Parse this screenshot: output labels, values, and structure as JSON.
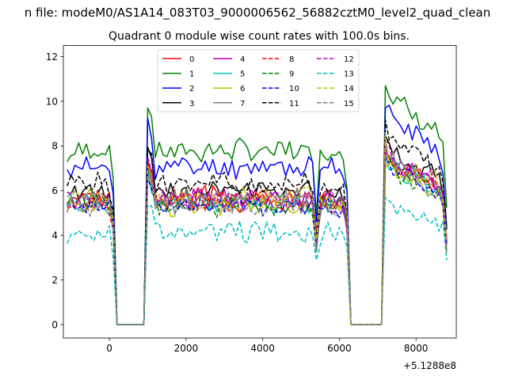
{
  "chart_data": {
    "type": "line",
    "suptitle": "n file: modeM0/AS1A14_083T03_9000006562_56882cztM0_level2_quad_clean",
    "title": "Quadrant 0 module wise count rates with 100.0s bins.",
    "xlabel": "",
    "ylabel": "",
    "x_offset_label": "+5.1288e8",
    "xlim": [
      -1200,
      9050
    ],
    "ylim": [
      -0.6,
      12.5
    ],
    "x_ticks": [
      0,
      2000,
      4000,
      6000,
      8000
    ],
    "x_tick_labels": [
      "0",
      "2000",
      "4000",
      "6000",
      "8000"
    ],
    "y_ticks": [
      0,
      2,
      4,
      6,
      8,
      10,
      12
    ],
    "y_tick_labels": [
      "0",
      "2",
      "4",
      "6",
      "8",
      "10",
      "12"
    ],
    "grid": false,
    "legend_placement": "top-center",
    "legend_columns": 4,
    "x_values_range": {
      "start": -1100,
      "end": 8800,
      "step": 100
    },
    "gaps": [
      [
        200,
        900
      ],
      [
        6300,
        7100
      ]
    ],
    "series": [
      {
        "name": "0",
        "color": "#ff0000",
        "dash": "solid",
        "level": 5.7,
        "seed": 3
      },
      {
        "name": "1",
        "color": "#008000",
        "dash": "solid",
        "level": 7.8,
        "seed": 7
      },
      {
        "name": "2",
        "color": "#0000ff",
        "dash": "solid",
        "level": 7.05,
        "seed": 11
      },
      {
        "name": "3",
        "color": "#000000",
        "dash": "solid",
        "level": 6.0,
        "seed": 13
      },
      {
        "name": "4",
        "color": "#bf00bf",
        "dash": "solid",
        "level": 5.55,
        "seed": 17
      },
      {
        "name": "5",
        "color": "#00bfbf",
        "dash": "solid",
        "level": 5.45,
        "seed": 19
      },
      {
        "name": "6",
        "color": "#bfbf00",
        "dash": "solid",
        "level": 5.3,
        "seed": 23
      },
      {
        "name": "7",
        "color": "#808080",
        "dash": "solid",
        "level": 5.6,
        "seed": 29
      },
      {
        "name": "8",
        "color": "#ff0000",
        "dash": "dashed",
        "level": 5.5,
        "seed": 31
      },
      {
        "name": "9",
        "color": "#008000",
        "dash": "dashed",
        "level": 5.35,
        "seed": 37
      },
      {
        "name": "10",
        "color": "#0000ff",
        "dash": "dashed",
        "level": 5.3,
        "seed": 41
      },
      {
        "name": "11",
        "color": "#000000",
        "dash": "dashed",
        "level": 6.3,
        "seed": 43
      },
      {
        "name": "12",
        "color": "#bf00bf",
        "dash": "dashed",
        "level": 5.65,
        "seed": 47
      },
      {
        "name": "13",
        "color": "#00bfbf",
        "dash": "dashed",
        "level": 4.15,
        "seed": 53
      },
      {
        "name": "14",
        "color": "#bfbf00",
        "dash": "dashed",
        "level": 5.7,
        "seed": 59
      },
      {
        "name": "15",
        "color": "#808080",
        "dash": "dashed",
        "level": 5.3,
        "seed": 61
      }
    ]
  }
}
